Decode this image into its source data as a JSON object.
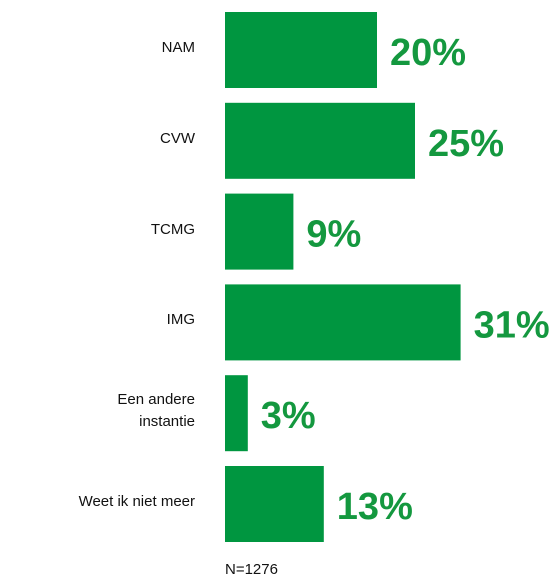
{
  "chart_data": {
    "type": "bar",
    "orientation": "horizontal",
    "categories": [
      "NAM",
      "CVW",
      "TCMG",
      "IMG",
      "Een andere\ninstantie",
      "Weet ik niet meer"
    ],
    "values": [
      20,
      25,
      9,
      31,
      3,
      13
    ],
    "value_labels": [
      "20%",
      "25%",
      "9%",
      "31%",
      "3%",
      "13%"
    ],
    "color": "#009640",
    "note": "N=1276"
  }
}
